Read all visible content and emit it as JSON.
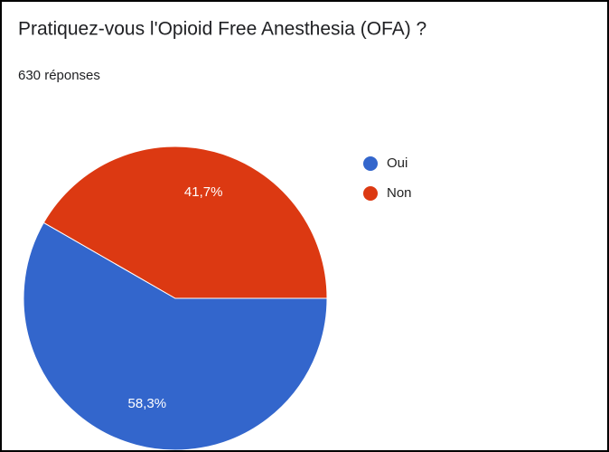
{
  "chart_data": {
    "type": "pie",
    "title": "Pratiquez-vous l'Opioid Free Anesthesia (OFA) ?",
    "subtitle": "630 réponses",
    "categories": [
      "Oui",
      "Non"
    ],
    "values": [
      58.3,
      41.7
    ],
    "value_labels": [
      "58,3%",
      "41,7%"
    ],
    "colors": [
      "#3366cc",
      "#dc3912"
    ],
    "start_angle": 90,
    "legend": "right"
  }
}
